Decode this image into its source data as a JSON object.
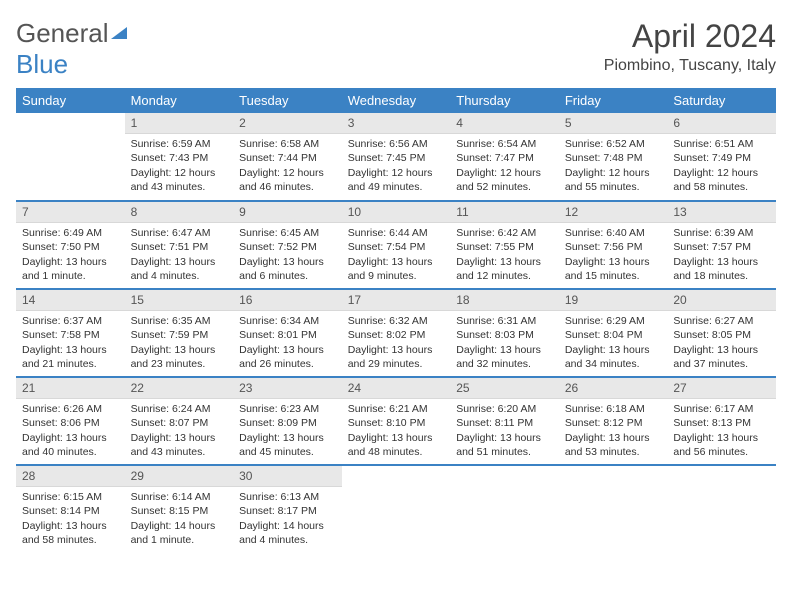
{
  "brand": {
    "part1": "General",
    "part2": "Blue"
  },
  "title": "April 2024",
  "subtitle": "Piombino, Tuscany, Italy",
  "colors": {
    "accent": "#3b82c4",
    "daynum_bg": "#e8e8e8",
    "text": "#333333"
  },
  "weekdays": [
    "Sunday",
    "Monday",
    "Tuesday",
    "Wednesday",
    "Thursday",
    "Friday",
    "Saturday"
  ],
  "grid": [
    [
      null,
      {
        "n": "1",
        "sunrise": "6:59 AM",
        "sunset": "7:43 PM",
        "daylight": "12 hours and 43 minutes."
      },
      {
        "n": "2",
        "sunrise": "6:58 AM",
        "sunset": "7:44 PM",
        "daylight": "12 hours and 46 minutes."
      },
      {
        "n": "3",
        "sunrise": "6:56 AM",
        "sunset": "7:45 PM",
        "daylight": "12 hours and 49 minutes."
      },
      {
        "n": "4",
        "sunrise": "6:54 AM",
        "sunset": "7:47 PM",
        "daylight": "12 hours and 52 minutes."
      },
      {
        "n": "5",
        "sunrise": "6:52 AM",
        "sunset": "7:48 PM",
        "daylight": "12 hours and 55 minutes."
      },
      {
        "n": "6",
        "sunrise": "6:51 AM",
        "sunset": "7:49 PM",
        "daylight": "12 hours and 58 minutes."
      }
    ],
    [
      {
        "n": "7",
        "sunrise": "6:49 AM",
        "sunset": "7:50 PM",
        "daylight": "13 hours and 1 minute."
      },
      {
        "n": "8",
        "sunrise": "6:47 AM",
        "sunset": "7:51 PM",
        "daylight": "13 hours and 4 minutes."
      },
      {
        "n": "9",
        "sunrise": "6:45 AM",
        "sunset": "7:52 PM",
        "daylight": "13 hours and 6 minutes."
      },
      {
        "n": "10",
        "sunrise": "6:44 AM",
        "sunset": "7:54 PM",
        "daylight": "13 hours and 9 minutes."
      },
      {
        "n": "11",
        "sunrise": "6:42 AM",
        "sunset": "7:55 PM",
        "daylight": "13 hours and 12 minutes."
      },
      {
        "n": "12",
        "sunrise": "6:40 AM",
        "sunset": "7:56 PM",
        "daylight": "13 hours and 15 minutes."
      },
      {
        "n": "13",
        "sunrise": "6:39 AM",
        "sunset": "7:57 PM",
        "daylight": "13 hours and 18 minutes."
      }
    ],
    [
      {
        "n": "14",
        "sunrise": "6:37 AM",
        "sunset": "7:58 PM",
        "daylight": "13 hours and 21 minutes."
      },
      {
        "n": "15",
        "sunrise": "6:35 AM",
        "sunset": "7:59 PM",
        "daylight": "13 hours and 23 minutes."
      },
      {
        "n": "16",
        "sunrise": "6:34 AM",
        "sunset": "8:01 PM",
        "daylight": "13 hours and 26 minutes."
      },
      {
        "n": "17",
        "sunrise": "6:32 AM",
        "sunset": "8:02 PM",
        "daylight": "13 hours and 29 minutes."
      },
      {
        "n": "18",
        "sunrise": "6:31 AM",
        "sunset": "8:03 PM",
        "daylight": "13 hours and 32 minutes."
      },
      {
        "n": "19",
        "sunrise": "6:29 AM",
        "sunset": "8:04 PM",
        "daylight": "13 hours and 34 minutes."
      },
      {
        "n": "20",
        "sunrise": "6:27 AM",
        "sunset": "8:05 PM",
        "daylight": "13 hours and 37 minutes."
      }
    ],
    [
      {
        "n": "21",
        "sunrise": "6:26 AM",
        "sunset": "8:06 PM",
        "daylight": "13 hours and 40 minutes."
      },
      {
        "n": "22",
        "sunrise": "6:24 AM",
        "sunset": "8:07 PM",
        "daylight": "13 hours and 43 minutes."
      },
      {
        "n": "23",
        "sunrise": "6:23 AM",
        "sunset": "8:09 PM",
        "daylight": "13 hours and 45 minutes."
      },
      {
        "n": "24",
        "sunrise": "6:21 AM",
        "sunset": "8:10 PM",
        "daylight": "13 hours and 48 minutes."
      },
      {
        "n": "25",
        "sunrise": "6:20 AM",
        "sunset": "8:11 PM",
        "daylight": "13 hours and 51 minutes."
      },
      {
        "n": "26",
        "sunrise": "6:18 AM",
        "sunset": "8:12 PM",
        "daylight": "13 hours and 53 minutes."
      },
      {
        "n": "27",
        "sunrise": "6:17 AM",
        "sunset": "8:13 PM",
        "daylight": "13 hours and 56 minutes."
      }
    ],
    [
      {
        "n": "28",
        "sunrise": "6:15 AM",
        "sunset": "8:14 PM",
        "daylight": "13 hours and 58 minutes."
      },
      {
        "n": "29",
        "sunrise": "6:14 AM",
        "sunset": "8:15 PM",
        "daylight": "14 hours and 1 minute."
      },
      {
        "n": "30",
        "sunrise": "6:13 AM",
        "sunset": "8:17 PM",
        "daylight": "14 hours and 4 minutes."
      },
      null,
      null,
      null,
      null
    ]
  ],
  "labels": {
    "sunrise": "Sunrise: ",
    "sunset": "Sunset: ",
    "daylight": "Daylight: "
  }
}
